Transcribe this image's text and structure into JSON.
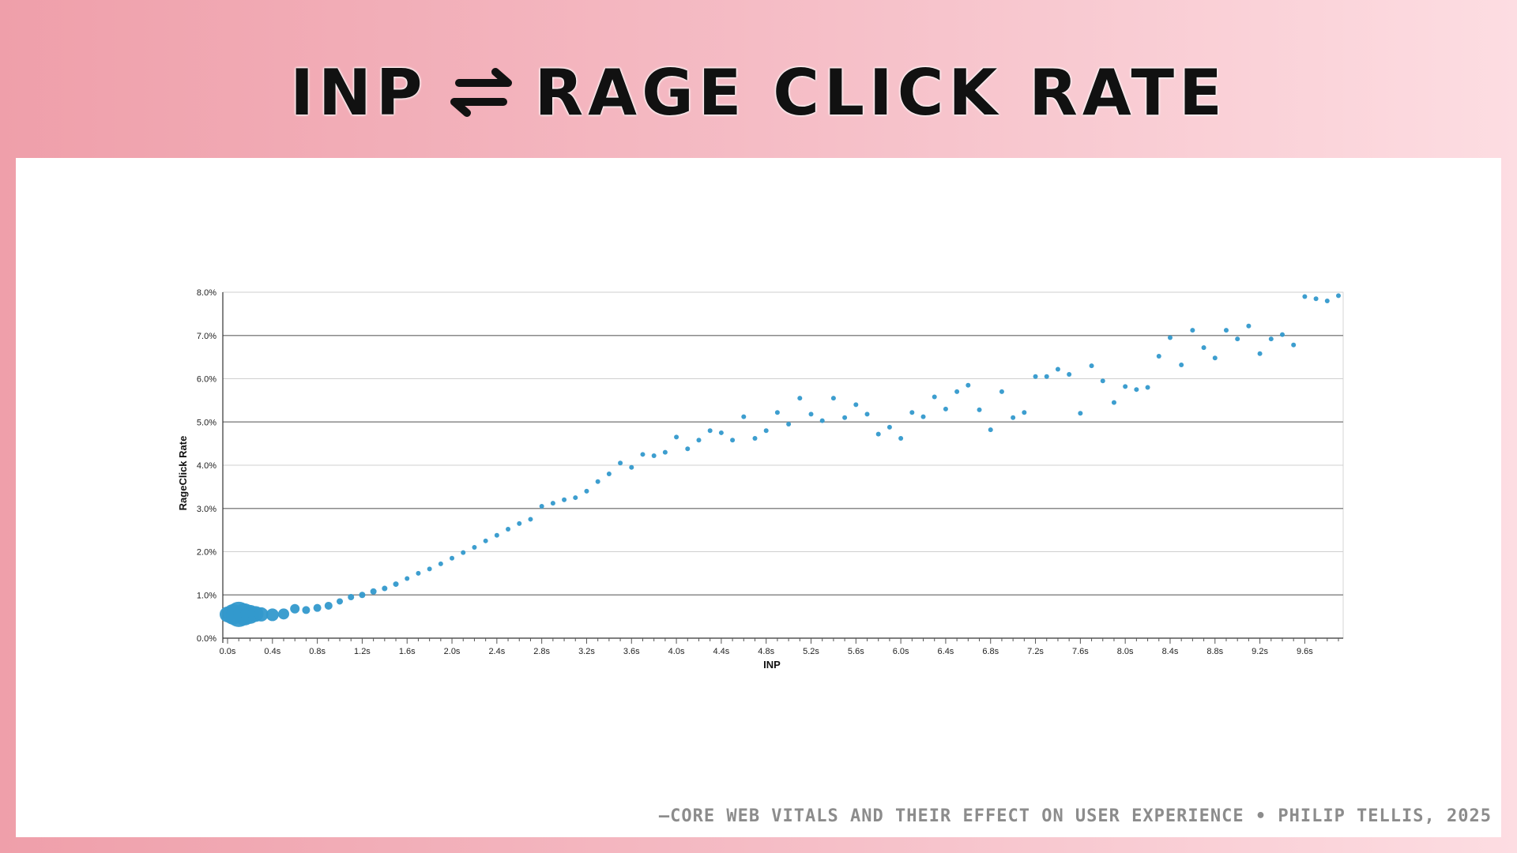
{
  "slide": {
    "title_left": "INP",
    "title_icon": "left-right-arrows-icon",
    "title_right": "RAGE CLICK RATE",
    "caption": "—CORE WEB VITALS AND THEIR EFFECT ON USER EXPERIENCE • PHILIP TELLIS, 2025"
  },
  "chart_data": {
    "type": "scatter",
    "xlabel": "INP",
    "ylabel": "RageClick Rate",
    "xlim": [
      0,
      9.8
    ],
    "ylim": [
      0,
      8.0
    ],
    "x_ticks": [
      "0.0s",
      "0.4s",
      "0.8s",
      "1.2s",
      "1.6s",
      "2.0s",
      "2.4s",
      "2.8s",
      "3.2s",
      "3.6s",
      "4.0s",
      "4.4s",
      "4.8s",
      "5.2s",
      "5.6s",
      "6.0s",
      "6.4s",
      "6.8s",
      "7.2s",
      "7.6s",
      "8.0s",
      "8.4s",
      "8.8s",
      "9.2s",
      "9.6s"
    ],
    "y_ticks": [
      "0.0%",
      "1.0%",
      "2.0%",
      "3.0%",
      "4.0%",
      "5.0%",
      "6.0%",
      "7.0%",
      "8.0%"
    ],
    "grid": true,
    "marker_color": "#3399cc",
    "points": [
      [
        0.0,
        0.55
      ],
      [
        0.05,
        0.55
      ],
      [
        0.1,
        0.55
      ],
      [
        0.15,
        0.55
      ],
      [
        0.2,
        0.55
      ],
      [
        0.25,
        0.56
      ],
      [
        0.3,
        0.55
      ],
      [
        0.4,
        0.54
      ],
      [
        0.5,
        0.56
      ],
      [
        0.6,
        0.68
      ],
      [
        0.7,
        0.65
      ],
      [
        0.8,
        0.7
      ],
      [
        0.9,
        0.75
      ],
      [
        1.0,
        0.85
      ],
      [
        1.1,
        0.95
      ],
      [
        1.2,
        1.0
      ],
      [
        1.3,
        1.08
      ],
      [
        1.4,
        1.15
      ],
      [
        1.5,
        1.25
      ],
      [
        1.6,
        1.38
      ],
      [
        1.7,
        1.5
      ],
      [
        1.8,
        1.6
      ],
      [
        1.9,
        1.72
      ],
      [
        2.0,
        1.85
      ],
      [
        2.1,
        1.98
      ],
      [
        2.2,
        2.1
      ],
      [
        2.3,
        2.25
      ],
      [
        2.4,
        2.38
      ],
      [
        2.5,
        2.52
      ],
      [
        2.6,
        2.65
      ],
      [
        2.7,
        2.75
      ],
      [
        2.8,
        3.05
      ],
      [
        2.9,
        3.12
      ],
      [
        3.0,
        3.2
      ],
      [
        3.1,
        3.25
      ],
      [
        3.2,
        3.4
      ],
      [
        3.3,
        3.62
      ],
      [
        3.4,
        3.8
      ],
      [
        3.5,
        4.05
      ],
      [
        3.6,
        3.95
      ],
      [
        3.7,
        4.25
      ],
      [
        3.8,
        4.22
      ],
      [
        3.9,
        4.3
      ],
      [
        4.0,
        4.65
      ],
      [
        4.1,
        4.38
      ],
      [
        4.2,
        4.58
      ],
      [
        4.3,
        4.8
      ],
      [
        4.4,
        4.75
      ],
      [
        4.5,
        4.58
      ],
      [
        4.6,
        5.12
      ],
      [
        4.7,
        4.62
      ],
      [
        4.8,
        4.8
      ],
      [
        4.9,
        5.22
      ],
      [
        5.0,
        4.95
      ],
      [
        5.1,
        5.55
      ],
      [
        5.2,
        5.18
      ],
      [
        5.3,
        5.03
      ],
      [
        5.4,
        5.55
      ],
      [
        5.5,
        5.1
      ],
      [
        5.6,
        5.4
      ],
      [
        5.7,
        5.18
      ],
      [
        5.8,
        4.72
      ],
      [
        5.9,
        4.88
      ],
      [
        6.0,
        4.62
      ],
      [
        6.1,
        5.22
      ],
      [
        6.2,
        5.12
      ],
      [
        6.3,
        5.58
      ],
      [
        6.4,
        5.3
      ],
      [
        6.5,
        5.7
      ],
      [
        6.6,
        5.85
      ],
      [
        6.7,
        5.28
      ],
      [
        6.8,
        4.82
      ],
      [
        6.9,
        5.7
      ],
      [
        7.0,
        5.1
      ],
      [
        7.1,
        5.22
      ],
      [
        7.2,
        6.05
      ],
      [
        7.3,
        6.05
      ],
      [
        7.4,
        6.22
      ],
      [
        7.5,
        6.1
      ],
      [
        7.6,
        5.2
      ],
      [
        7.7,
        6.3
      ],
      [
        7.8,
        5.95
      ],
      [
        7.9,
        5.45
      ],
      [
        8.0,
        5.82
      ],
      [
        8.1,
        5.75
      ],
      [
        8.2,
        5.8
      ],
      [
        8.3,
        6.52
      ],
      [
        8.4,
        6.95
      ],
      [
        8.5,
        6.32
      ],
      [
        8.6,
        7.12
      ],
      [
        8.7,
        6.72
      ],
      [
        8.8,
        6.48
      ],
      [
        8.9,
        7.12
      ],
      [
        9.0,
        6.92
      ],
      [
        9.1,
        7.22
      ],
      [
        9.2,
        6.58
      ],
      [
        9.3,
        6.92
      ],
      [
        9.4,
        7.02
      ],
      [
        9.5,
        6.78
      ],
      [
        9.6,
        7.9
      ],
      [
        9.7,
        7.85
      ],
      [
        9.8,
        7.8
      ],
      [
        9.9,
        7.92
      ]
    ],
    "point_sizes": [
      10,
      13,
      16,
      14,
      12,
      10,
      9,
      8,
      7,
      6,
      5,
      5,
      5,
      4,
      4,
      4,
      4,
      3.5,
      3.5,
      3,
      3,
      3,
      3,
      3,
      3,
      3,
      3,
      3,
      3,
      3,
      3,
      3,
      3,
      3,
      3,
      3,
      3,
      3,
      3,
      3,
      3,
      3,
      3,
      3,
      3,
      3,
      3,
      3,
      3,
      3,
      3,
      3,
      3,
      3,
      3,
      3,
      3,
      3,
      3,
      3,
      3,
      3,
      3,
      3,
      3,
      3,
      3,
      3,
      3,
      3,
      3,
      3,
      3,
      3,
      3,
      3,
      3,
      3,
      3,
      3,
      3,
      3,
      3,
      3,
      3,
      3,
      3,
      3,
      3,
      3,
      3,
      3,
      3,
      3,
      3,
      3,
      3,
      3,
      3,
      3,
      3,
      3,
      3,
      3,
      3,
      3,
      3,
      3,
      3,
      3
    ]
  }
}
